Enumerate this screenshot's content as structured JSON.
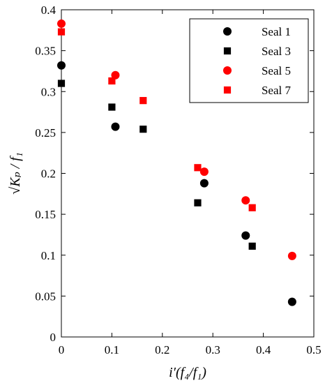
{
  "chart_data": {
    "type": "scatter",
    "xlabel": "i′(f₄/f₁)",
    "ylabel": "√Kₚ / f₁",
    "xlim": [
      0,
      0.5
    ],
    "ylim": [
      0,
      0.4
    ],
    "xticks": [
      0,
      0.1,
      0.2,
      0.3,
      0.4,
      0.5
    ],
    "xtick_labels": [
      "0",
      "0.1",
      "0.2",
      "0.3",
      "0.4",
      "0.5"
    ],
    "yticks": [
      0,
      0.05,
      0.1,
      0.15,
      0.2,
      0.25,
      0.3,
      0.35,
      0.4
    ],
    "ytick_labels": [
      "0",
      "0.05",
      "0.1",
      "0.15",
      "0.2",
      "0.25",
      "0.3",
      "0.35",
      "0.4"
    ],
    "grid": false,
    "legend_position": "top-right",
    "series": [
      {
        "name": "Seal 1",
        "marker": "circle",
        "color": "#000000",
        "points": [
          [
            0.0,
            0.332
          ],
          [
            0.107,
            0.257
          ],
          [
            0.283,
            0.188
          ],
          [
            0.365,
            0.124
          ],
          [
            0.457,
            0.043
          ]
        ]
      },
      {
        "name": "Seal 3",
        "marker": "square",
        "color": "#000000",
        "points": [
          [
            0.0,
            0.31
          ],
          [
            0.1,
            0.281
          ],
          [
            0.162,
            0.254
          ],
          [
            0.27,
            0.164
          ],
          [
            0.378,
            0.111
          ]
        ]
      },
      {
        "name": "Seal 5",
        "marker": "circle",
        "color": "#ff0000",
        "points": [
          [
            0.0,
            0.383
          ],
          [
            0.107,
            0.32
          ],
          [
            0.283,
            0.202
          ],
          [
            0.365,
            0.167
          ],
          [
            0.457,
            0.099
          ]
        ]
      },
      {
        "name": "Seal 7",
        "marker": "square",
        "color": "#ff0000",
        "points": [
          [
            0.0,
            0.373
          ],
          [
            0.1,
            0.313
          ],
          [
            0.162,
            0.289
          ],
          [
            0.27,
            0.207
          ],
          [
            0.378,
            0.158
          ]
        ]
      }
    ]
  }
}
